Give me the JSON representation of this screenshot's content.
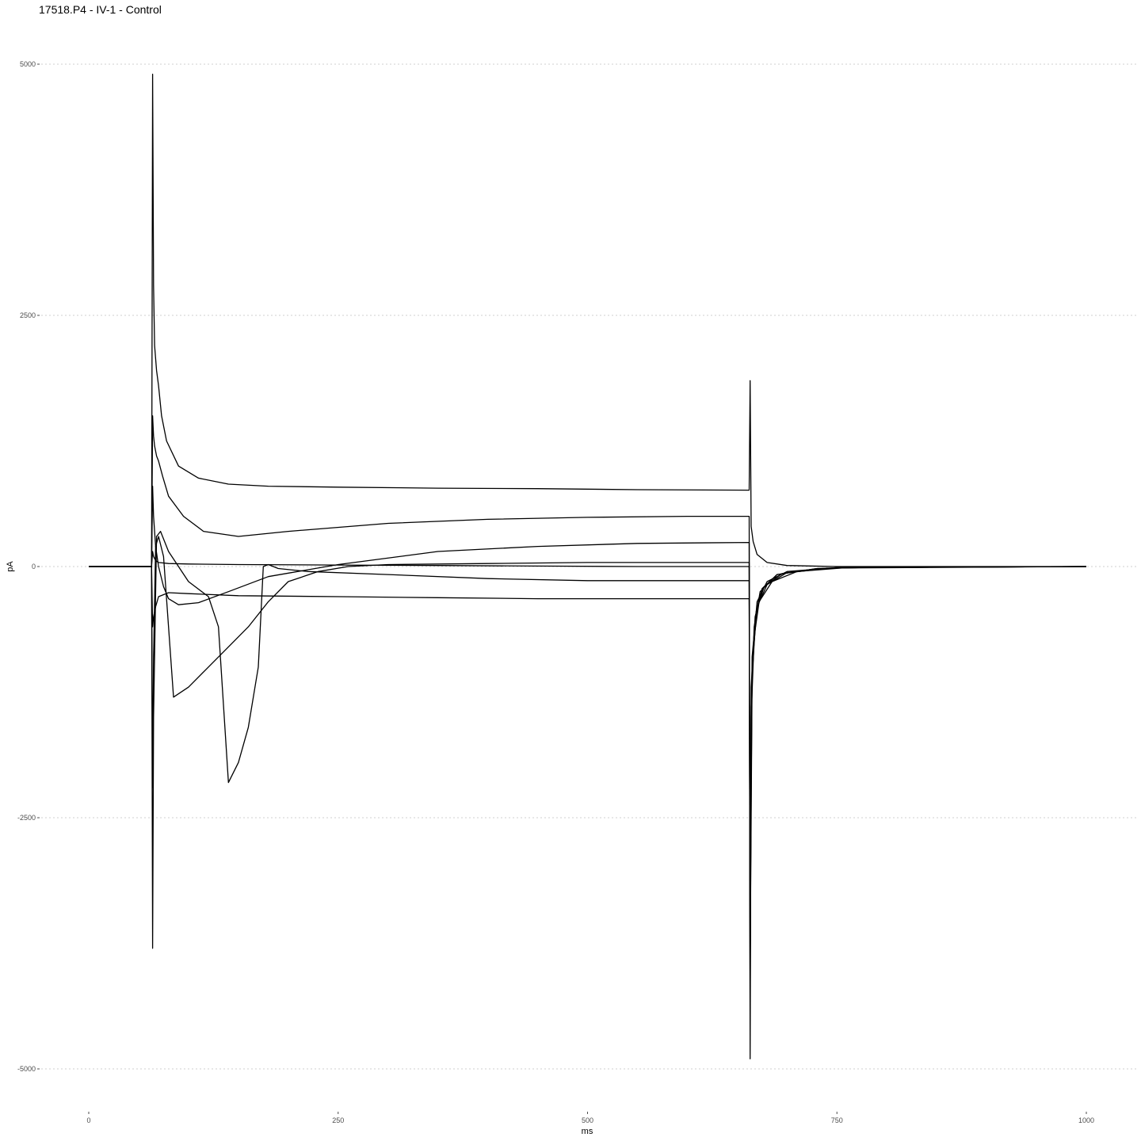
{
  "chart_data": {
    "type": "line",
    "title": "17518.P4 - IV-1 - Control",
    "xlabel": "ms",
    "ylabel": "pA",
    "xlim": [
      -10,
      1050
    ],
    "ylim": [
      -5500,
      5300
    ],
    "x_ticks": [
      0,
      250,
      500,
      750,
      1000
    ],
    "x_tick_labels": [
      "0",
      "250",
      "500",
      "750",
      "1000"
    ],
    "y_ticks": [
      -5000,
      -2500,
      0,
      2500,
      5000
    ],
    "y_tick_labels": [
      "-5000",
      "-2500",
      "0",
      "2500",
      "5000"
    ],
    "grid": "horizontal dotted",
    "line_color": "#000000",
    "series": [
      {
        "x": [
          0,
          63,
          64,
          65,
          66,
          68,
          70,
          73,
          78,
          90,
          110,
          140,
          180,
          250,
          350,
          450,
          550,
          662,
          663,
          664,
          666,
          670,
          680,
          700,
          750,
          1000
        ],
        "y": [
          0,
          0,
          4900,
          2800,
          2200,
          1950,
          1800,
          1500,
          1250,
          1000,
          880,
          820,
          800,
          790,
          780,
          775,
          765,
          760,
          1850,
          400,
          250,
          120,
          40,
          10,
          0,
          0
        ]
      },
      {
        "x": [
          0,
          63,
          64,
          65,
          66,
          68,
          70,
          74,
          80,
          95,
          115,
          150,
          200,
          300,
          400,
          500,
          600,
          662,
          663,
          664,
          667,
          672,
          685,
          710,
          760,
          1000
        ],
        "y": [
          0,
          0,
          1500,
          1300,
          1200,
          1100,
          1050,
          900,
          700,
          500,
          350,
          300,
          350,
          430,
          470,
          490,
          500,
          500,
          -4900,
          -1500,
          -700,
          -350,
          -150,
          -50,
          -10,
          0
        ]
      },
      {
        "x": [
          0,
          63,
          64,
          65,
          67,
          70,
          75,
          80,
          90,
          110,
          140,
          180,
          250,
          350,
          450,
          550,
          662,
          663,
          664,
          667,
          673,
          690,
          730,
          800,
          1000
        ],
        "y": [
          0,
          0,
          800,
          500,
          200,
          0,
          -200,
          -320,
          -380,
          -360,
          -250,
          -100,
          20,
          150,
          200,
          230,
          240,
          -4500,
          -1400,
          -600,
          -250,
          -80,
          -20,
          -5,
          0
        ]
      },
      {
        "x": [
          0,
          63,
          64,
          65,
          67,
          70,
          75,
          80,
          85,
          100,
          120,
          140,
          160,
          180,
          200,
          230,
          260,
          300,
          400,
          500,
          600,
          662,
          663,
          664,
          668,
          675,
          690,
          730,
          800,
          1000
        ],
        "y": [
          0,
          0,
          -2200,
          -900,
          200,
          300,
          100,
          -600,
          -1300,
          -1200,
          -1000,
          -800,
          -600,
          -350,
          -150,
          -50,
          0,
          20,
          30,
          40,
          40,
          40,
          -4200,
          -1200,
          -500,
          -220,
          -80,
          -20,
          -5,
          0
        ]
      },
      {
        "x": [
          0,
          63,
          64,
          65,
          68,
          72,
          80,
          100,
          120,
          130,
          140,
          150,
          160,
          170,
          175,
          180,
          190,
          220,
          300,
          400,
          500,
          600,
          662,
          663,
          665,
          669,
          677,
          695,
          740,
          1000
        ],
        "y": [
          0,
          0,
          -3800,
          -1500,
          300,
          350,
          150,
          -150,
          -300,
          -600,
          -2150,
          -1950,
          -1600,
          -1000,
          0,
          20,
          -20,
          -50,
          -80,
          -120,
          -140,
          -140,
          -140,
          -4000,
          -1100,
          -450,
          -200,
          -70,
          -15,
          0
        ]
      },
      {
        "x": [
          0,
          63,
          64,
          65,
          67,
          70,
          80,
          100,
          150,
          250,
          350,
          450,
          550,
          662,
          663,
          665,
          670,
          680,
          700,
          750,
          1000
        ],
        "y": [
          0,
          0,
          -600,
          -500,
          -400,
          -300,
          -260,
          -270,
          -290,
          -300,
          -310,
          -320,
          -320,
          -320,
          -3700,
          -1000,
          -400,
          -180,
          -60,
          -10,
          0
        ]
      },
      {
        "x": [
          0,
          63,
          64,
          65,
          67,
          70,
          80,
          100,
          150,
          250,
          350,
          450,
          550,
          662,
          663,
          665,
          670,
          680,
          700,
          750,
          1000
        ],
        "y": [
          0,
          0,
          150,
          100,
          60,
          40,
          30,
          25,
          20,
          15,
          10,
          5,
          0,
          0,
          -3300,
          -900,
          -350,
          -150,
          -50,
          -10,
          0
        ]
      }
    ]
  }
}
